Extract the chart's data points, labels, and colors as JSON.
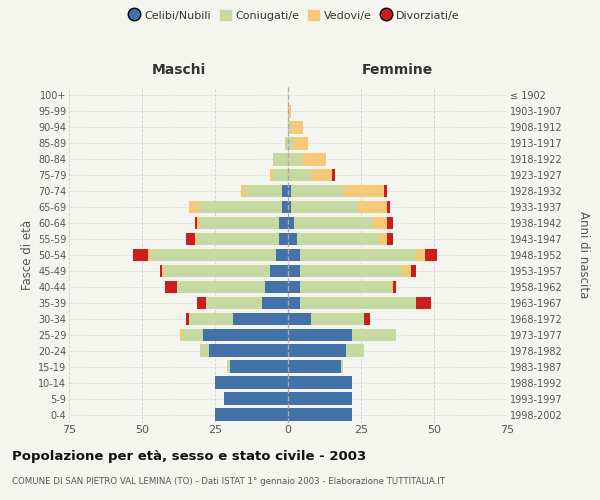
{
  "age_groups": [
    "0-4",
    "5-9",
    "10-14",
    "15-19",
    "20-24",
    "25-29",
    "30-34",
    "35-39",
    "40-44",
    "45-49",
    "50-54",
    "55-59",
    "60-64",
    "65-69",
    "70-74",
    "75-79",
    "80-84",
    "85-89",
    "90-94",
    "95-99",
    "100+"
  ],
  "birth_years": [
    "1998-2002",
    "1993-1997",
    "1988-1992",
    "1983-1987",
    "1978-1982",
    "1973-1977",
    "1968-1972",
    "1963-1967",
    "1958-1962",
    "1953-1957",
    "1948-1952",
    "1943-1947",
    "1938-1942",
    "1933-1937",
    "1928-1932",
    "1923-1927",
    "1918-1922",
    "1913-1917",
    "1908-1912",
    "1903-1907",
    "≤ 1902"
  ],
  "males": {
    "celibe": [
      25,
      22,
      25,
      20,
      27,
      29,
      19,
      9,
      8,
      6,
      4,
      3,
      3,
      2,
      2,
      0,
      0,
      0,
      0,
      0,
      0
    ],
    "coniugato": [
      0,
      0,
      0,
      1,
      3,
      7,
      15,
      19,
      30,
      36,
      43,
      28,
      27,
      28,
      12,
      5,
      5,
      1,
      0,
      0,
      0
    ],
    "vedovo": [
      0,
      0,
      0,
      0,
      0,
      1,
      0,
      0,
      0,
      1,
      1,
      1,
      1,
      4,
      2,
      1,
      0,
      0,
      0,
      0,
      0
    ],
    "divorziato": [
      0,
      0,
      0,
      0,
      0,
      0,
      1,
      3,
      4,
      1,
      5,
      3,
      1,
      0,
      0,
      0,
      0,
      0,
      0,
      0,
      0
    ]
  },
  "females": {
    "nubile": [
      22,
      22,
      22,
      18,
      20,
      22,
      8,
      4,
      4,
      4,
      4,
      3,
      2,
      1,
      1,
      0,
      0,
      0,
      0,
      0,
      0
    ],
    "coniugata": [
      0,
      0,
      0,
      1,
      6,
      15,
      18,
      40,
      31,
      35,
      40,
      28,
      27,
      23,
      18,
      8,
      5,
      2,
      1,
      0,
      0
    ],
    "vedova": [
      0,
      0,
      0,
      0,
      0,
      0,
      0,
      0,
      1,
      3,
      3,
      3,
      5,
      10,
      14,
      7,
      8,
      5,
      4,
      1,
      0
    ],
    "divorziata": [
      0,
      0,
      0,
      0,
      0,
      0,
      2,
      5,
      1,
      2,
      4,
      2,
      2,
      1,
      1,
      1,
      0,
      0,
      0,
      0,
      0
    ]
  },
  "colors": {
    "celibe": "#4472a8",
    "coniugato": "#c5d9a0",
    "vedovo": "#f5c97a",
    "divorziato": "#cc1e1e"
  },
  "legend_labels": [
    "Celibi/Nubili",
    "Coniugati/e",
    "Vedovi/e",
    "Divorziati/e"
  ],
  "xlim": 75,
  "title": "Popolazione per età, sesso e stato civile - 2003",
  "subtitle": "COMUNE DI SAN PIETRO VAL LEMINA (TO) - Dati ISTAT 1° gennaio 2003 - Elaborazione TUTTITALIA.IT",
  "ylabel_left": "Fasce di età",
  "ylabel_right": "Anni di nascita",
  "header_male": "Maschi",
  "header_female": "Femmine",
  "bg_color": "#f5f5f0",
  "grid_color": "#cccccc"
}
